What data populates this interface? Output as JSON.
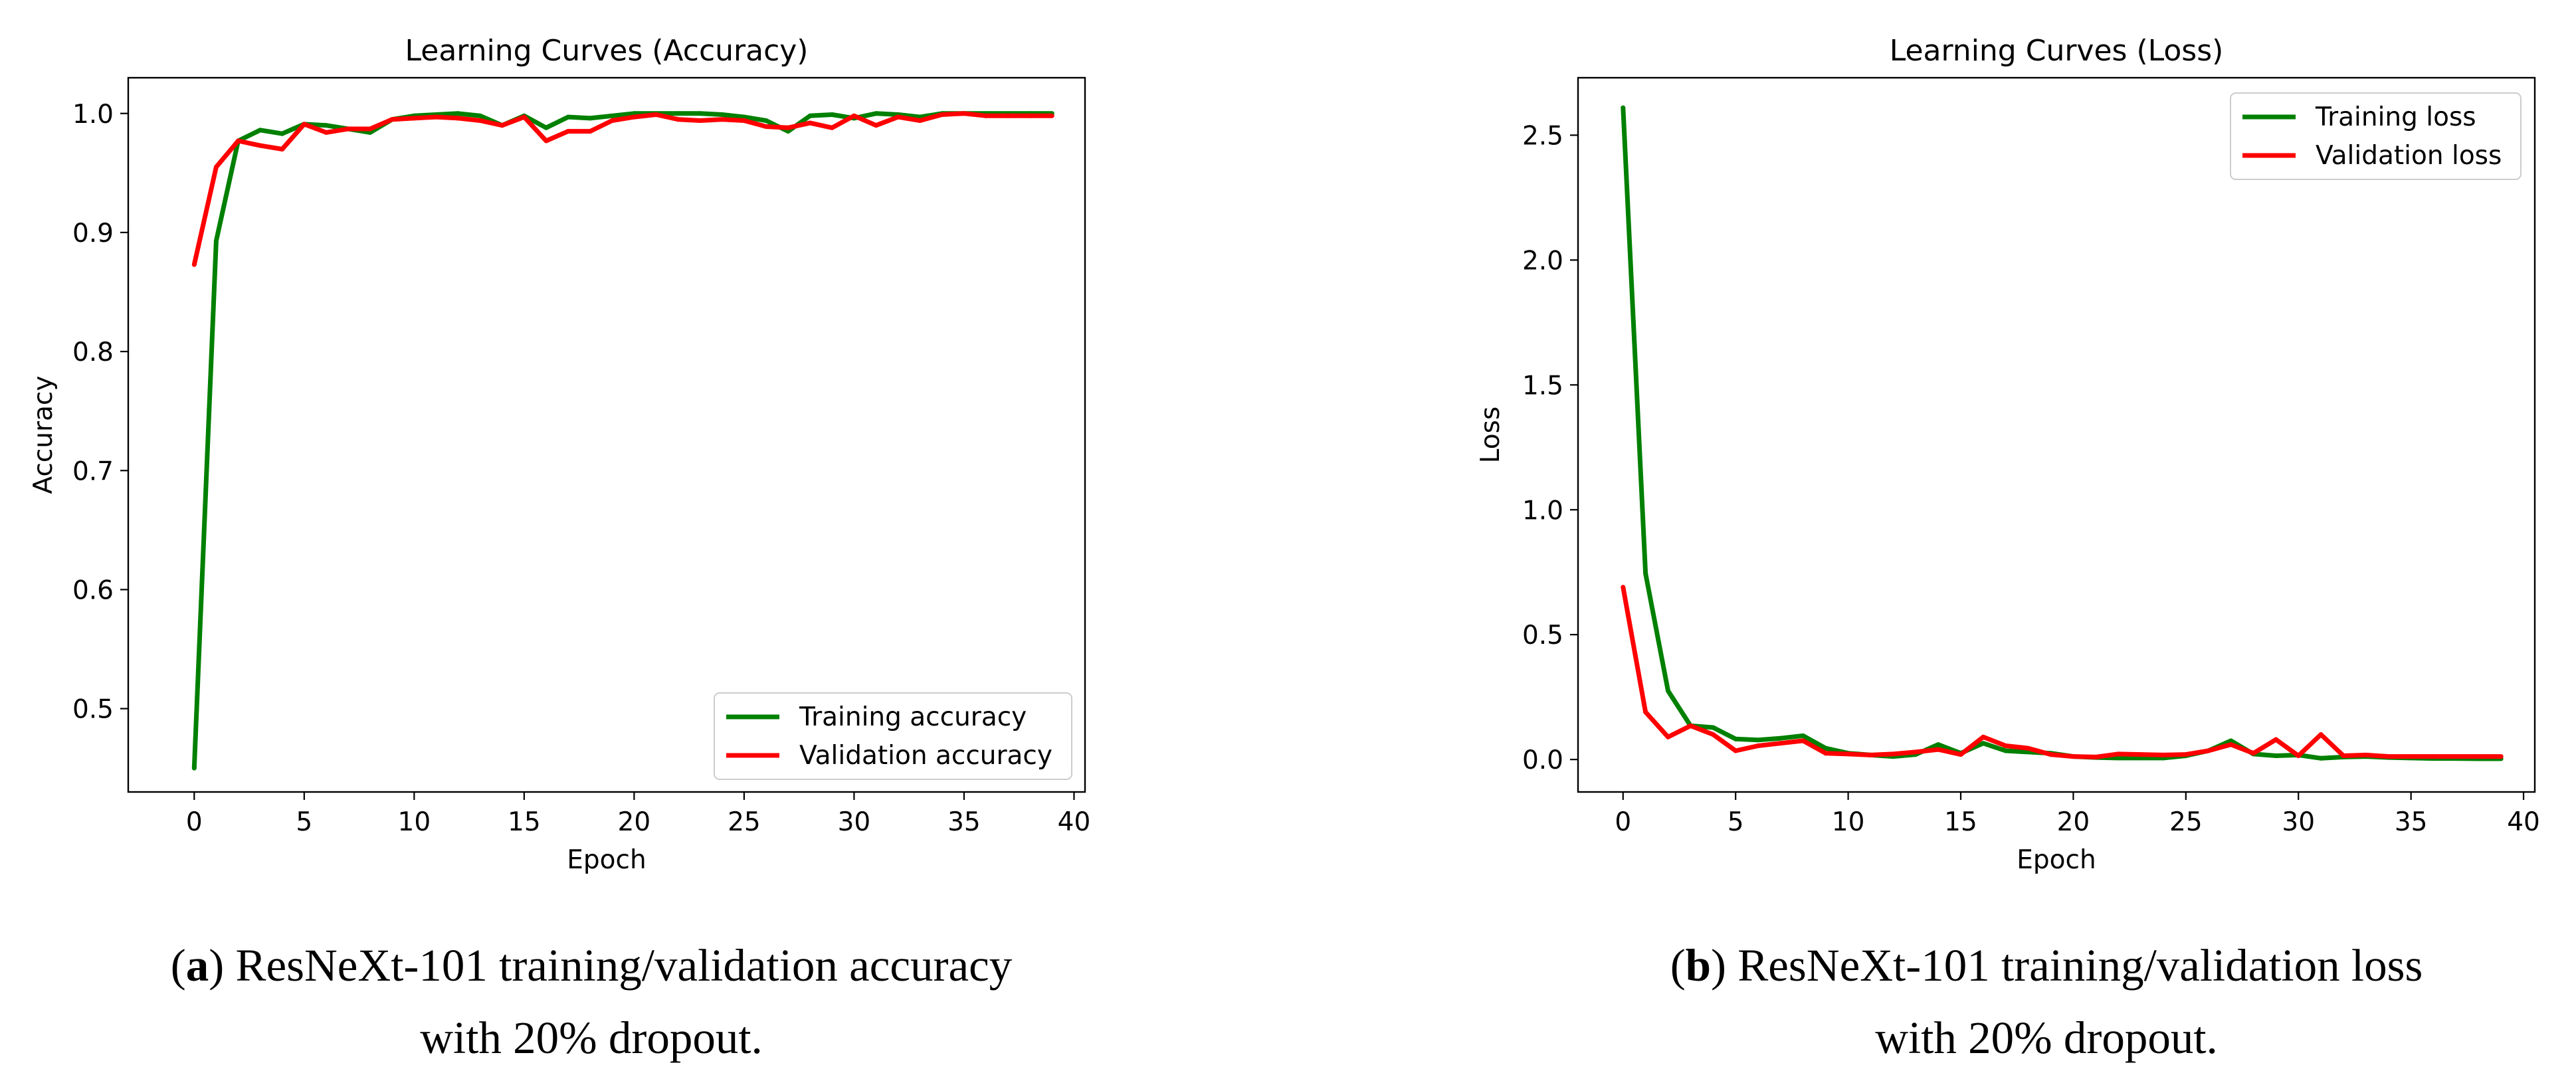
{
  "chart_data": [
    {
      "type": "line",
      "title": "Learning Curves (Accuracy)",
      "xlabel": "Epoch",
      "ylabel": "Accuracy",
      "xlim": [
        -3,
        40.5
      ],
      "ylim": [
        0.43,
        1.03
      ],
      "xticks": [
        0,
        5,
        10,
        15,
        20,
        25,
        30,
        35,
        40
      ],
      "yticks": [
        0.5,
        0.6,
        0.7,
        0.8,
        0.9,
        1.0
      ],
      "ytick_labels": [
        "0.5",
        "0.6",
        "0.7",
        "0.8",
        "0.9",
        "1.0"
      ],
      "legend_position": "lower-right",
      "caption": {
        "prefix": "(",
        "letter": "a",
        "line1": ") ResNeXt-101 training/validation accuracy",
        "line2": "with 20% dropout."
      },
      "series": [
        {
          "name": "Training accuracy",
          "color": "#008000",
          "values": [
            0.45,
            0.893,
            0.977,
            0.986,
            0.983,
            0.991,
            0.99,
            0.987,
            0.984,
            0.995,
            0.998,
            0.999,
            1.0,
            0.998,
            0.99,
            0.998,
            0.988,
            0.997,
            0.996,
            0.998,
            1.0,
            1.0,
            1.0,
            1.0,
            0.999,
            0.997,
            0.994,
            0.985,
            0.998,
            0.999,
            0.996,
            1.0,
            0.999,
            0.997,
            1.0,
            1.0,
            1.0,
            1.0,
            1.0,
            1.0
          ]
        },
        {
          "name": "Validation accuracy",
          "color": "#ff0000",
          "values": [
            0.873,
            0.955,
            0.977,
            0.973,
            0.97,
            0.991,
            0.984,
            0.987,
            0.987,
            0.995,
            0.996,
            0.997,
            0.996,
            0.994,
            0.99,
            0.997,
            0.977,
            0.985,
            0.985,
            0.994,
            0.997,
            0.999,
            0.995,
            0.994,
            0.995,
            0.994,
            0.989,
            0.988,
            0.992,
            0.988,
            0.998,
            0.99,
            0.997,
            0.994,
            0.999,
            1.0,
            0.998,
            0.998,
            0.998,
            0.998
          ]
        }
      ]
    },
    {
      "type": "line",
      "title": "Learning Curves (Loss)",
      "xlabel": "Epoch",
      "ylabel": "Loss",
      "xlim": [
        -2,
        40.5
      ],
      "ylim": [
        -0.13,
        2.73
      ],
      "xticks": [
        0,
        5,
        10,
        15,
        20,
        25,
        30,
        35,
        40
      ],
      "yticks": [
        0,
        0.5,
        1,
        1.5,
        2,
        2.5
      ],
      "ytick_labels": [
        "0.0",
        "0.5",
        "1.0",
        "1.5",
        "2.0",
        "2.5"
      ],
      "legend_position": "upper-right",
      "caption": {
        "prefix": "(",
        "letter": "b",
        "line1": ") ResNeXt-101 training/validation loss",
        "line2": "with 20% dropout."
      },
      "series": [
        {
          "name": "Training loss",
          "color": "#008000",
          "values": [
            2.61,
            0.745,
            0.275,
            0.135,
            0.128,
            0.082,
            0.078,
            0.085,
            0.095,
            0.045,
            0.025,
            0.018,
            0.012,
            0.02,
            0.06,
            0.025,
            0.065,
            0.035,
            0.03,
            0.025,
            0.012,
            0.008,
            0.006,
            0.006,
            0.006,
            0.015,
            0.035,
            0.075,
            0.022,
            0.015,
            0.018,
            0.005,
            0.01,
            0.012,
            0.008,
            0.006,
            0.004,
            0.004,
            0.003,
            0.003
          ]
        },
        {
          "name": "Validation loss",
          "color": "#ff0000",
          "values": [
            0.69,
            0.19,
            0.09,
            0.135,
            0.1,
            0.035,
            0.055,
            0.065,
            0.075,
            0.025,
            0.022,
            0.018,
            0.022,
            0.03,
            0.04,
            0.02,
            0.09,
            0.055,
            0.045,
            0.02,
            0.012,
            0.01,
            0.022,
            0.02,
            0.018,
            0.02,
            0.035,
            0.06,
            0.025,
            0.08,
            0.015,
            0.1,
            0.015,
            0.018,
            0.012,
            0.012,
            0.012,
            0.012,
            0.012,
            0.012
          ]
        }
      ]
    }
  ]
}
